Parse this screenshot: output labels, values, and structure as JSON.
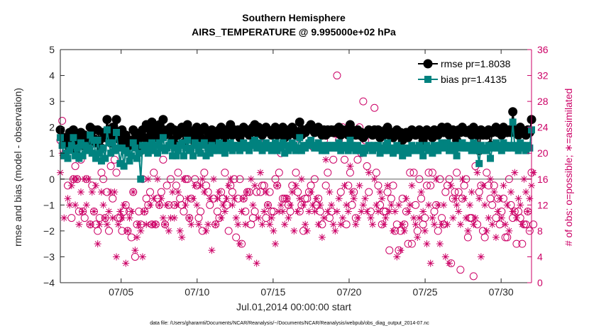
{
  "chart_data": {
    "type": "line",
    "title": "Southern Hemisphere",
    "subtitle": "AIRS_TEMPERATURE @ 9.995000e+02 hPa",
    "xlabel": "Jul.01,2014 00:00:00 start",
    "ylabel": "rmse and bias (model - observation)",
    "ylabel_right": "# of obs: o=possible; ∗=assimilated",
    "footnote": "data file: /Users/gharamti/Documents/NCAR/Reanalysis/~/Documents/NCAR/Reanalysis/webpub/obs_diag_output_2014-07.nc",
    "xlim": [
      1,
      32
    ],
    "ylim": [
      -4,
      5
    ],
    "ylim_right": [
      0,
      36
    ],
    "x_ticks": [
      5,
      10,
      15,
      20,
      25,
      30
    ],
    "x_tick_labels": [
      "07/05",
      "07/10",
      "07/15",
      "07/20",
      "07/25",
      "07/30"
    ],
    "y_ticks": [
      -4,
      -3,
      -2,
      -1,
      0,
      1,
      2,
      3,
      4,
      5
    ],
    "y_ticks_right": [
      0,
      4,
      8,
      12,
      16,
      20,
      24,
      28,
      32,
      36
    ],
    "grid": false,
    "legend_position": "top-right",
    "colors": {
      "rmse": "#000000",
      "bias": "#00827f",
      "obs": "#cc0066"
    },
    "series": [
      {
        "name": "rmse pr=1.8038",
        "key": "rmse",
        "marker": "circle",
        "y": [
          1.9,
          1.6,
          1.6,
          1.4,
          1.3,
          1.8,
          1.5,
          1.9,
          1.1,
          1.7,
          1.5,
          1.8,
          1.3,
          1.7,
          1.6,
          1.5,
          2.0,
          1.6,
          1.9,
          1.4,
          1.9,
          1.5,
          1.2,
          1.8,
          1.6,
          2.3,
          1.8,
          1.4,
          2.0,
          1.6,
          2.3,
          1.8,
          1.5,
          1.9,
          1.3,
          1.7,
          1.5,
          1.3,
          1.5,
          1.9,
          1.8,
          1.4,
          1.6,
          1.1,
          1.9,
          1.6,
          2.1,
          1.6,
          1.9,
          2.2,
          1.7,
          1.9,
          1.6,
          2.1,
          1.8,
          2.3,
          1.7,
          1.9,
          1.8,
          2.0,
          1.5,
          1.9,
          1.3,
          1.7,
          1.9,
          2.0,
          1.4,
          1.8,
          2.1,
          1.6,
          1.8,
          1.5,
          1.9,
          2.0,
          1.7,
          1.6,
          1.9,
          2.0,
          1.5,
          1.8,
          1.6,
          1.9,
          1.5,
          1.8,
          1.7,
          1.9,
          2.0,
          1.7,
          1.6,
          1.9,
          1.8,
          2.1,
          1.7,
          1.9,
          1.8,
          1.9,
          1.6,
          1.9,
          2.0,
          1.8,
          1.9,
          1.7,
          1.9,
          2.0,
          2.1,
          1.8,
          2.0,
          1.9,
          1.7,
          1.8,
          2.0,
          1.9,
          1.8,
          1.7,
          1.9,
          2.0,
          1.7,
          1.9,
          1.8,
          2.0,
          1.6,
          1.9,
          1.7,
          1.8,
          2.0,
          1.9,
          1.7,
          1.8,
          2.2,
          1.7,
          1.9,
          1.8,
          1.9,
          2.0,
          2.1,
          1.9,
          1.8,
          1.9,
          2.0,
          1.8,
          1.7,
          1.9,
          1.7,
          1.9,
          1.8,
          1.9,
          1.8,
          1.9,
          1.8,
          2.0,
          1.7,
          1.9,
          1.8,
          1.9,
          1.7,
          2.1,
          1.9,
          1.8,
          1.7,
          1.9,
          1.7,
          1.8,
          1.6,
          1.7,
          1.8,
          1.9,
          1.8,
          1.7,
          1.9,
          1.8,
          1.9,
          1.6,
          1.8,
          1.7,
          1.9,
          2.0,
          1.7,
          1.8,
          1.6,
          1.8,
          1.9,
          1.7,
          1.8,
          1.5,
          1.7,
          1.8,
          1.6,
          1.7,
          1.9,
          1.8,
          1.7,
          1.8,
          1.9,
          1.7,
          1.5,
          1.8,
          1.9,
          1.7,
          1.8,
          1.6,
          1.9,
          1.8,
          1.7,
          1.9,
          2.0,
          1.8,
          1.9,
          2.0,
          1.7,
          1.8,
          1.9,
          1.7,
          1.5,
          1.9,
          1.8,
          2.0,
          1.9,
          1.8,
          1.8,
          1.9,
          1.7,
          2.0,
          1.9,
          1.7,
          1.1,
          1.9,
          1.7,
          1.8,
          1.7,
          1.9,
          1.3,
          1.8,
          1.9,
          2.0,
          1.8,
          1.9,
          1.7,
          2.0,
          1.9,
          1.8,
          1.9,
          1.8,
          2.6,
          1.9,
          1.8,
          1.7,
          2.0,
          1.9,
          1.8,
          1.7,
          1.9,
          1.8,
          2.3
        ]
      },
      {
        "name": "bias pr=1.4135",
        "key": "bias",
        "marker": "square",
        "y": [
          1.6,
          1.3,
          0.9,
          1.0,
          0.8,
          1.1,
          1.3,
          1.6,
          0.9,
          1.2,
          0.8,
          1.4,
          0.9,
          1.3,
          1.1,
          1.2,
          1.7,
          1.0,
          1.5,
          0.8,
          1.5,
          1.0,
          0.7,
          1.2,
          0.8,
          1.9,
          1.4,
          1.0,
          1.4,
          1.1,
          1.8,
          1.2,
          0.6,
          1.2,
          0.5,
          1.1,
          1.0,
          0.7,
          0.9,
          1.4,
          1.2,
          0.8,
          1.0,
          0.0,
          1.3,
          1.1,
          1.3,
          1.0,
          1.2,
          1.4,
          1.1,
          1.3,
          1.0,
          1.4,
          1.2,
          1.6,
          1.1,
          1.2,
          1.3,
          1.4,
          0.9,
          1.2,
          0.9,
          1.1,
          1.3,
          1.4,
          0.9,
          1.2,
          1.5,
          1.1,
          1.2,
          0.9,
          1.4,
          1.3,
          1.1,
          1.0,
          1.3,
          1.4,
          0.9,
          1.2,
          1.0,
          1.3,
          1.1,
          1.2,
          1.1,
          1.4,
          1.3,
          1.1,
          1.0,
          1.3,
          1.2,
          1.4,
          1.1,
          1.3,
          1.2,
          1.3,
          1.1,
          1.3,
          1.4,
          1.2,
          1.3,
          1.1,
          1.3,
          1.4,
          1.5,
          1.2,
          1.4,
          1.3,
          1.1,
          1.2,
          1.4,
          1.3,
          1.2,
          1.1,
          1.3,
          1.4,
          1.1,
          1.3,
          1.2,
          1.4,
          1.0,
          1.3,
          1.1,
          1.2,
          1.4,
          1.3,
          1.1,
          1.2,
          1.6,
          1.1,
          1.3,
          1.2,
          1.3,
          1.4,
          1.5,
          1.3,
          1.2,
          1.3,
          1.4,
          1.2,
          1.1,
          1.3,
          1.1,
          1.3,
          1.2,
          1.3,
          1.2,
          1.3,
          1.2,
          1.4,
          1.1,
          1.3,
          1.2,
          1.3,
          1.1,
          1.5,
          1.3,
          1.2,
          1.1,
          1.3,
          1.1,
          1.2,
          1.0,
          1.1,
          1.2,
          1.3,
          1.2,
          1.1,
          1.3,
          1.2,
          1.3,
          1.0,
          1.2,
          1.1,
          1.3,
          1.4,
          1.1,
          1.2,
          1.0,
          1.2,
          1.3,
          1.1,
          1.2,
          0.9,
          1.1,
          1.2,
          1.0,
          1.1,
          1.3,
          1.2,
          1.1,
          1.2,
          1.3,
          1.1,
          0.9,
          1.2,
          1.3,
          1.1,
          1.2,
          1.0,
          1.3,
          1.2,
          1.1,
          1.3,
          1.4,
          1.2,
          1.3,
          1.4,
          1.1,
          1.2,
          1.3,
          1.1,
          0.9,
          1.3,
          1.2,
          1.4,
          1.3,
          1.2,
          1.2,
          1.3,
          1.1,
          1.4,
          1.3,
          1.1,
          0.6,
          1.3,
          1.1,
          1.2,
          1.1,
          1.3,
          0.8,
          1.2,
          1.3,
          1.4,
          1.2,
          1.3,
          1.1,
          1.4,
          1.3,
          1.2,
          1.3,
          1.2,
          2.2,
          1.3,
          1.2,
          1.1,
          1.4,
          1.3,
          1.2,
          1.1,
          1.3,
          1.2,
          1.9
        ]
      },
      {
        "name": "possible",
        "key": "possible",
        "marker": "open-circle",
        "axis": "right",
        "y": [
          22,
          25,
          22,
          20,
          15,
          23,
          10,
          16,
          18,
          16,
          11,
          19,
          11,
          10,
          16,
          21,
          9,
          15,
          11,
          9,
          8,
          10,
          17,
          16,
          10,
          14,
          8,
          18,
          13,
          19,
          17,
          10,
          10,
          8,
          11,
          12,
          8,
          11,
          7,
          14,
          4,
          9,
          11,
          9,
          16,
          11,
          13,
          12,
          14,
          9,
          17,
          9,
          13,
          12,
          14,
          19,
          9,
          15,
          12,
          16,
          23,
          12,
          15,
          17,
          13,
          12,
          11,
          16,
          16,
          10,
          13,
          22,
          16,
          15,
          10,
          11,
          8,
          17,
          15,
          14,
          12,
          21,
          13,
          9,
          11,
          10,
          14,
          13,
          17,
          12,
          8,
          15,
          14,
          16,
          7,
          13,
          16,
          6,
          13,
          11,
          14,
          14,
          9,
          10,
          11,
          14,
          22,
          14,
          15,
          15,
          10,
          12,
          14,
          11,
          11,
          16,
          15,
          17,
          20,
          13,
          13,
          13,
          12,
          11,
          15,
          22,
          17,
          14,
          11,
          12,
          8,
          13,
          13,
          14,
          15,
          21,
          16,
          12,
          13,
          11,
          9,
          22,
          15,
          17,
          10,
          11,
          19,
          23,
          32,
          22,
          14,
          24,
          19,
          9,
          15,
          17,
          12,
          14,
          10,
          19,
          24,
          20,
          28,
          22,
          18,
          14,
          11,
          23,
          27,
          17,
          15,
          12,
          9,
          11,
          11,
          14,
          5,
          13,
          15,
          8,
          9,
          5,
          8,
          13,
          9,
          11,
          6,
          17,
          6,
          17,
          12,
          8,
          16,
          13,
          9,
          10,
          15,
          17,
          15,
          17,
          11,
          12,
          8,
          16,
          10,
          9,
          14,
          15,
          16,
          3,
          13,
          14,
          17,
          14,
          2,
          13,
          15,
          16,
          7,
          10,
          10,
          1,
          18,
          9,
          14,
          15,
          8,
          7,
          17,
          15,
          13,
          12,
          15,
          10,
          13,
          9,
          11,
          13,
          7,
          7,
          16,
          12,
          10,
          11,
          6,
          11,
          10,
          6,
          9,
          9,
          11,
          8,
          17,
          9
        ]
      },
      {
        "name": "assimilated",
        "key": "assimilated",
        "marker": "asterisk",
        "axis": "right",
        "y": [
          17,
          20,
          10,
          20,
          13,
          12,
          15,
          16,
          12,
          16,
          9,
          14,
          11,
          16,
          12,
          16,
          9,
          14,
          11,
          15,
          6,
          9,
          14,
          12,
          10,
          9,
          11,
          14,
          10,
          14,
          4,
          9,
          11,
          10,
          12,
          3,
          8,
          10,
          11,
          14,
          5,
          7,
          9,
          8,
          4,
          11,
          9,
          16,
          12,
          9,
          13,
          9,
          16,
          12,
          13,
          10,
          9,
          12,
          8,
          10,
          14,
          10,
          12,
          14,
          8,
          7,
          16,
          12,
          13,
          10,
          9,
          13,
          15,
          12,
          9,
          15,
          16,
          14,
          8,
          9,
          13,
          5,
          16,
          9,
          13,
          14,
          10,
          12,
          11,
          13,
          15,
          16,
          12,
          13,
          10,
          9,
          6,
          11,
          13,
          9,
          14,
          4,
          16,
          12,
          15,
          3,
          10,
          17,
          9,
          11,
          14,
          12,
          9,
          10,
          8,
          6,
          15,
          11,
          12,
          11,
          9,
          13,
          10,
          12,
          14,
          8,
          15,
          11,
          13,
          16,
          12,
          9,
          8,
          11,
          14,
          12,
          11,
          13,
          9,
          12,
          7,
          10,
          19,
          11,
          14,
          12,
          9,
          8,
          11,
          13,
          9,
          10,
          15,
          12,
          11,
          18,
          14,
          13,
          9,
          10,
          15,
          11,
          12,
          13,
          11,
          17,
          10,
          9,
          16,
          12,
          11,
          14,
          13,
          9,
          10,
          15,
          11,
          12,
          8,
          11,
          4,
          12,
          5,
          9,
          8,
          13,
          11,
          12,
          15,
          10,
          9,
          7,
          10,
          14,
          11,
          8,
          6,
          12,
          3,
          10,
          9,
          16,
          12,
          6,
          9,
          12,
          4,
          9,
          3,
          15,
          10,
          13,
          12,
          11,
          9,
          16,
          13,
          10,
          8,
          12,
          14,
          9,
          10,
          17,
          13,
          4,
          15,
          12,
          8,
          10,
          16,
          9,
          14,
          7,
          11,
          13,
          10,
          15,
          9,
          12,
          8,
          14,
          11,
          17,
          10,
          13,
          12,
          9,
          16,
          14,
          11,
          13,
          15,
          17
        ]
      }
    ]
  }
}
